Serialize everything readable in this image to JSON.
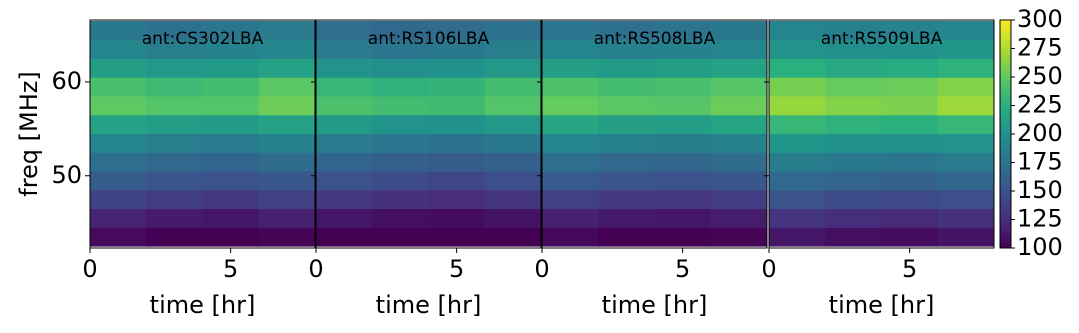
{
  "chart_data": [
    {
      "type": "heatmap",
      "title": "ant:CS302LBA",
      "xlabel": "time [hr]",
      "ylabel": "freq [MHz]",
      "x": [
        1,
        3,
        5,
        7
      ],
      "y": [
        43.5,
        45.5,
        47.5,
        49.5,
        51.5,
        53.5,
        55.5,
        57.5,
        59.5,
        61.5,
        63.5,
        65.5
      ],
      "values": [
        [
          105,
          100,
          100,
          102
        ],
        [
          120,
          115,
          112,
          118
        ],
        [
          140,
          135,
          132,
          138
        ],
        [
          158,
          152,
          150,
          155
        ],
        [
          172,
          168,
          165,
          170
        ],
        [
          190,
          185,
          182,
          188
        ],
        [
          215,
          210,
          208,
          215
        ],
        [
          250,
          245,
          245,
          255
        ],
        [
          240,
          235,
          238,
          248
        ],
        [
          210,
          205,
          208,
          215
        ],
        [
          190,
          185,
          188,
          192
        ],
        [
          180,
          175,
          178,
          182
        ]
      ],
      "xlim": [
        0,
        8
      ],
      "ylim": [
        42.3,
        66.6
      ],
      "xticks": [
        0,
        5
      ],
      "yticks": [
        50,
        60
      ]
    },
    {
      "type": "heatmap",
      "title": "ant:RS106LBA",
      "xlabel": "time [hr]",
      "x": [
        1,
        3,
        5,
        7
      ],
      "y": [
        43.5,
        45.5,
        47.5,
        49.5,
        51.5,
        53.5,
        55.5,
        57.5,
        59.5,
        61.5,
        63.5,
        65.5
      ],
      "values": [
        [
          100,
          100,
          100,
          100
        ],
        [
          112,
          108,
          106,
          110
        ],
        [
          132,
          128,
          125,
          130
        ],
        [
          150,
          145,
          142,
          148
        ],
        [
          165,
          160,
          158,
          162
        ],
        [
          182,
          178,
          175,
          180
        ],
        [
          208,
          202,
          200,
          206
        ],
        [
          242,
          238,
          236,
          245
        ],
        [
          232,
          228,
          230,
          238
        ],
        [
          202,
          198,
          200,
          206
        ],
        [
          182,
          178,
          180,
          185
        ],
        [
          172,
          168,
          170,
          175
        ]
      ],
      "xlim": [
        0,
        8
      ],
      "ylim": [
        42.3,
        66.6
      ],
      "xticks": [
        0,
        5
      ]
    },
    {
      "type": "heatmap",
      "title": "ant:RS508LBA",
      "xlabel": "time [hr]",
      "x": [
        1,
        3,
        5,
        7
      ],
      "y": [
        43.5,
        45.5,
        47.5,
        49.5,
        51.5,
        53.5,
        55.5,
        57.5,
        59.5,
        61.5,
        63.5,
        65.5
      ],
      "values": [
        [
          104,
          100,
          100,
          102
        ],
        [
          118,
          114,
          112,
          116
        ],
        [
          138,
          134,
          132,
          136
        ],
        [
          156,
          152,
          150,
          154
        ],
        [
          172,
          168,
          166,
          170
        ],
        [
          190,
          186,
          184,
          188
        ],
        [
          218,
          212,
          210,
          216
        ],
        [
          252,
          248,
          246,
          254
        ],
        [
          242,
          238,
          240,
          246
        ],
        [
          212,
          208,
          210,
          214
        ],
        [
          190,
          186,
          188,
          190
        ],
        [
          178,
          174,
          176,
          180
        ]
      ],
      "xlim": [
        0,
        8
      ],
      "ylim": [
        42.3,
        66.6
      ],
      "xticks": [
        0,
        5
      ]
    },
    {
      "type": "heatmap",
      "title": "ant:RS509LBA",
      "xlabel": "time [hr]",
      "x": [
        1,
        3,
        5,
        7
      ],
      "y": [
        43.5,
        45.5,
        47.5,
        49.5,
        51.5,
        53.5,
        55.5,
        57.5,
        59.5,
        61.5,
        63.5,
        65.5
      ],
      "values": [
        [
          112,
          108,
          106,
          110
        ],
        [
          130,
          126,
          124,
          128
        ],
        [
          150,
          146,
          144,
          148
        ],
        [
          168,
          164,
          162,
          166
        ],
        [
          184,
          180,
          178,
          182
        ],
        [
          204,
          200,
          198,
          202
        ],
        [
          232,
          228,
          226,
          232
        ],
        [
          268,
          262,
          260,
          270
        ],
        [
          258,
          252,
          254,
          262
        ],
        [
          226,
          220,
          222,
          228
        ],
        [
          202,
          198,
          200,
          204
        ],
        [
          190,
          186,
          188,
          192
        ]
      ],
      "xlim": [
        0,
        8
      ],
      "ylim": [
        42.3,
        66.6
      ],
      "xticks": [
        0,
        5
      ]
    },
    {
      "type": "colorbar",
      "clim": [
        100,
        300
      ],
      "yticks": [
        100,
        125,
        150,
        175,
        200,
        225,
        250,
        275,
        300
      ],
      "colors": [
        "#440154",
        "#472d7b",
        "#3b528b",
        "#2c728e",
        "#21918c",
        "#28ae80",
        "#5ec962",
        "#addc30",
        "#fde725"
      ]
    }
  ]
}
